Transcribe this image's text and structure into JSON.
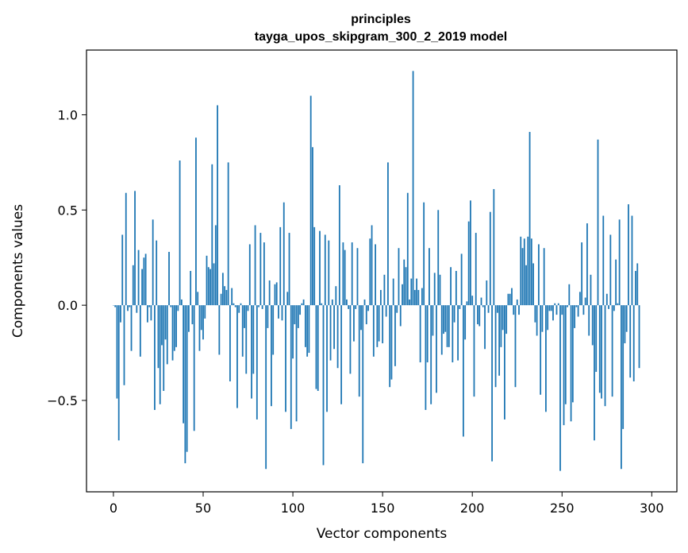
{
  "chart_data": {
    "type": "bar",
    "title": "principles",
    "subtitle": "tayga_upos_skipgram_300_2_2019 model",
    "xlabel": "Vector components",
    "ylabel": "Components values",
    "xlim": [
      -15,
      314
    ],
    "ylim": [
      -0.98,
      1.34
    ],
    "xticks": [
      0,
      50,
      100,
      150,
      200,
      250,
      300
    ],
    "xtick_labels": [
      "0",
      "50",
      "100",
      "150",
      "200",
      "250",
      "300"
    ],
    "yticks": [
      -0.5,
      0.0,
      0.5,
      1.0
    ],
    "ytick_labels": [
      "−0.5",
      "0.0",
      "0.5",
      "1.0"
    ],
    "grid": false,
    "bar_color": "#1f77b4",
    "values": [
      0.0,
      -0.01,
      -0.49,
      -0.71,
      -0.09,
      0.37,
      -0.42,
      0.59,
      -0.03,
      -0.01,
      -0.24,
      0.21,
      0.6,
      -0.04,
      0.29,
      -0.27,
      0.19,
      0.25,
      0.27,
      -0.09,
      -0.01,
      -0.08,
      0.45,
      -0.55,
      0.34,
      -0.33,
      -0.52,
      -0.21,
      -0.45,
      -0.18,
      -0.31,
      0.28,
      -0.01,
      -0.29,
      -0.24,
      -0.22,
      -0.03,
      0.76,
      0.03,
      -0.62,
      -0.83,
      -0.77,
      -0.14,
      0.18,
      -0.1,
      -0.66,
      0.88,
      0.07,
      -0.24,
      -0.13,
      -0.18,
      -0.07,
      0.26,
      0.2,
      0.19,
      0.74,
      0.22,
      0.42,
      1.05,
      -0.26,
      0.06,
      0.17,
      0.1,
      0.08,
      0.75,
      -0.4,
      0.09,
      0.01,
      -0.01,
      -0.54,
      -0.04,
      0.01,
      -0.27,
      -0.12,
      -0.36,
      -0.03,
      0.32,
      -0.49,
      -0.36,
      0.42,
      -0.6,
      -0.01,
      0.38,
      -0.02,
      0.33,
      -0.86,
      -0.12,
      0.13,
      -0.53,
      -0.26,
      0.11,
      0.12,
      -0.07,
      0.41,
      -0.08,
      0.54,
      -0.56,
      0.07,
      0.38,
      -0.65,
      -0.28,
      -0.1,
      -0.61,
      -0.12,
      -0.05,
      0.01,
      0.03,
      -0.22,
      -0.27,
      -0.25,
      1.1,
      0.83,
      0.41,
      -0.44,
      -0.45,
      0.39,
      0.01,
      -0.84,
      0.37,
      -0.56,
      0.34,
      -0.29,
      0.03,
      -0.23,
      0.1,
      -0.33,
      0.63,
      -0.52,
      0.33,
      0.29,
      0.03,
      -0.02,
      -0.36,
      0.33,
      -0.19,
      -0.02,
      0.3,
      -0.48,
      -0.13,
      -0.83,
      0.03,
      -0.1,
      -0.03,
      0.35,
      0.42,
      -0.27,
      0.32,
      -0.22,
      -0.19,
      0.08,
      -0.2,
      0.16,
      -0.06,
      0.75,
      -0.43,
      -0.39,
      0.14,
      -0.32,
      -0.04,
      0.3,
      -0.11,
      0.11,
      0.24,
      0.2,
      0.59,
      0.03,
      0.14,
      1.23,
      0.08,
      0.14,
      0.08,
      -0.3,
      0.09,
      0.54,
      -0.55,
      -0.3,
      0.3,
      -0.52,
      -0.16,
      0.17,
      -0.46,
      0.5,
      0.16,
      -0.26,
      -0.15,
      -0.14,
      -0.22,
      -0.22,
      0.2,
      -0.3,
      -0.09,
      0.18,
      -0.29,
      -0.02,
      0.27,
      -0.69,
      -0.18,
      0.02,
      0.44,
      0.55,
      0.05,
      -0.48,
      0.38,
      -0.1,
      -0.11,
      0.04,
      -0.01,
      -0.23,
      0.13,
      -0.04,
      0.49,
      -0.82,
      0.61,
      -0.43,
      -0.04,
      -0.37,
      -0.22,
      -0.13,
      -0.6,
      -0.15,
      0.06,
      0.06,
      0.09,
      -0.05,
      -0.43,
      0.03,
      -0.05,
      0.36,
      0.3,
      0.35,
      0.21,
      0.36,
      0.91,
      0.35,
      0.22,
      -0.09,
      -0.16,
      0.32,
      -0.47,
      -0.14,
      0.3,
      -0.56,
      -0.13,
      -0.03,
      -0.03,
      -0.08,
      0.01,
      -0.05,
      0.01,
      -0.87,
      -0.05,
      -0.63,
      -0.52,
      -0.01,
      0.11,
      -0.61,
      -0.51,
      -0.12,
      -0.01,
      -0.06,
      0.07,
      0.33,
      -0.05,
      0.04,
      0.43,
      -0.16,
      0.16,
      -0.21,
      -0.71,
      -0.35,
      0.87,
      -0.46,
      -0.49,
      0.47,
      -0.53,
      0.06,
      -0.02,
      0.37,
      -0.48,
      -0.03,
      0.24,
      0.01,
      0.45,
      -0.86,
      -0.65,
      -0.2,
      -0.14,
      0.53,
      -0.38,
      0.47,
      -0.4,
      0.18,
      0.22,
      -0.33
    ]
  }
}
